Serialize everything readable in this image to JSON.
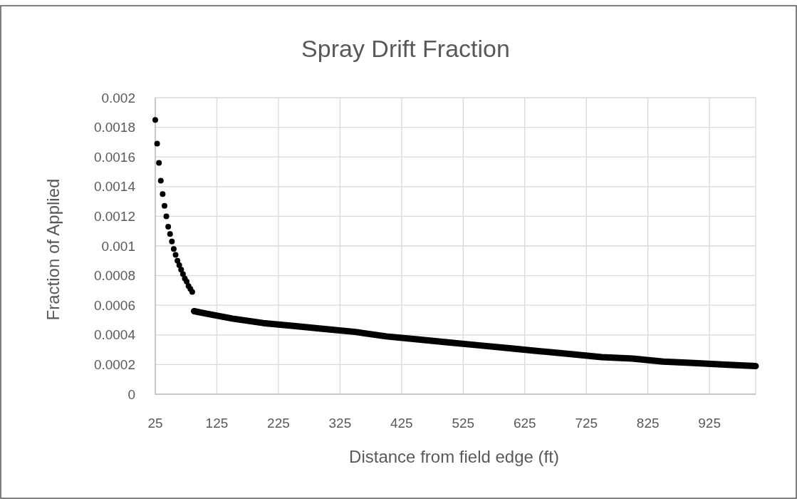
{
  "chart_data": {
    "type": "scatter",
    "title": "Spray Drift Fraction",
    "xlabel": "Distance from field edge (ft)",
    "ylabel": "Fraction of Applied",
    "xlim": [
      25,
      1000
    ],
    "xticks": [
      25,
      125,
      225,
      325,
      425,
      525,
      625,
      725,
      825,
      925
    ],
    "ylim": [
      0,
      0.002
    ],
    "yticks": [
      0,
      0.0002,
      0.0004,
      0.0006,
      0.0008,
      0.001,
      0.0012,
      0.0014,
      0.0016,
      0.0018,
      0.002
    ],
    "grid": true,
    "series": [
      {
        "marker": "circle",
        "color": "#000000",
        "x": [
          25,
          28,
          31,
          34,
          37,
          40,
          43,
          46,
          49,
          52,
          55,
          58,
          61,
          64,
          67,
          70,
          73,
          76,
          79,
          82,
          85
        ],
        "values": [
          0.00185,
          0.00169,
          0.00156,
          0.00144,
          0.00135,
          0.00127,
          0.0012,
          0.00113,
          0.00108,
          0.00103,
          0.00098,
          0.00094,
          0.0009,
          0.00087,
          0.00084,
          0.00081,
          0.00078,
          0.00076,
          0.00073,
          0.00071,
          0.00069
        ]
      },
      {
        "type": "line",
        "marker": "none",
        "color": "#000000",
        "x": [
          88,
          100,
          150,
          200,
          250,
          300,
          350,
          400,
          450,
          500,
          550,
          600,
          650,
          700,
          750,
          800,
          850,
          900,
          950,
          1000
        ],
        "values": [
          0.00056,
          0.00055,
          0.00051,
          0.00048,
          0.00046,
          0.00044,
          0.00042,
          0.00039,
          0.00037,
          0.00035,
          0.00033,
          0.00031,
          0.00029,
          0.00027,
          0.00025,
          0.00024,
          0.00022,
          0.00021,
          0.0002,
          0.00019
        ]
      }
    ]
  }
}
